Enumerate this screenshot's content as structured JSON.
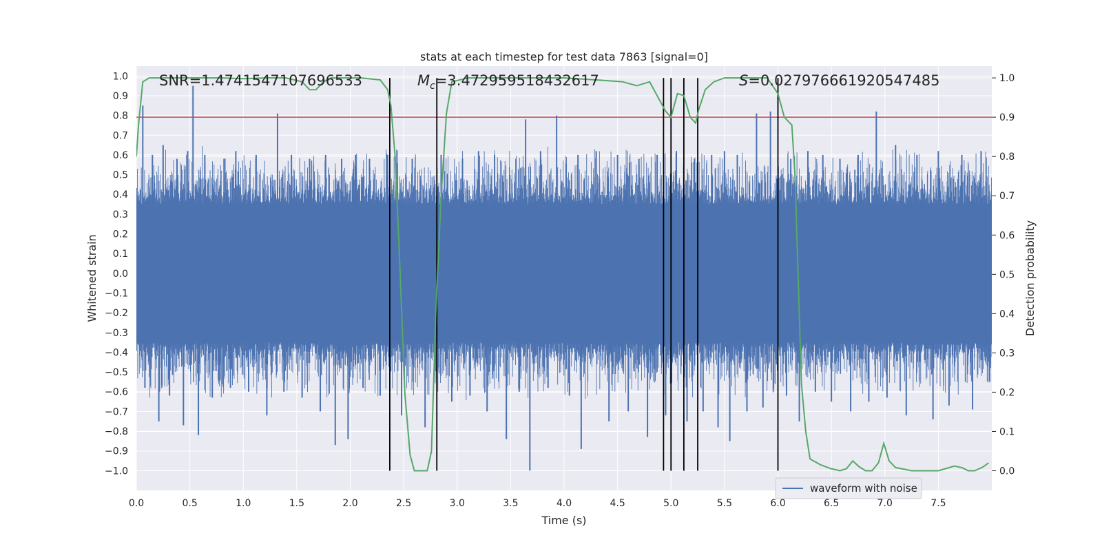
{
  "chart_data": {
    "type": "line",
    "title": "stats at each timestep for test data 7863 [signal=0]",
    "xlabel": "Time (s)",
    "ylabel": "Whitened strain",
    "y2label": "Detection probability",
    "xlim": [
      0,
      8.0
    ],
    "ylim": [
      -1.1,
      1.05
    ],
    "y2lim": [
      -0.05,
      1.03
    ],
    "xticks": [
      0.0,
      0.5,
      1.0,
      1.5,
      2.0,
      2.5,
      3.0,
      3.5,
      4.0,
      4.5,
      5.0,
      5.5,
      6.0,
      6.5,
      7.0,
      7.5
    ],
    "xtick_labels": [
      "0.0",
      "0.5",
      "1.0",
      "1.5",
      "2.0",
      "2.5",
      "3.0",
      "3.5",
      "4.0",
      "4.5",
      "5.0",
      "5.5",
      "6.0",
      "6.5",
      "7.0",
      "7.5"
    ],
    "yticks": [
      1.0,
      0.9,
      0.8,
      0.7,
      0.6,
      0.5,
      0.4,
      0.3,
      0.2,
      0.1,
      0.0,
      -0.1,
      -0.2,
      -0.3,
      -0.4,
      -0.5,
      -0.6,
      -0.7,
      -0.8,
      -0.9,
      -1.0
    ],
    "ytick_labels": [
      "1.0",
      "0.9",
      "0.8",
      "0.7",
      "0.6",
      "0.5",
      "0.4",
      "0.3",
      "0.2",
      "0.1",
      "0.0",
      "−0.1",
      "−0.2",
      "−0.3",
      "−0.4",
      "−0.5",
      "−0.6",
      "−0.7",
      "−0.8",
      "−0.9",
      "−1.0"
    ],
    "y2ticks": [
      1.0,
      0.9,
      0.8,
      0.7,
      0.6,
      0.5,
      0.4,
      0.3,
      0.2,
      0.1,
      0.0
    ],
    "y2tick_labels": [
      "1.0",
      "0.9",
      "0.8",
      "0.7",
      "0.6",
      "0.5",
      "0.4",
      "0.3",
      "0.2",
      "0.1",
      "0.0"
    ],
    "annotations": {
      "snr": "SNR=1.4741547107696533",
      "mc_symbol": "M",
      "mc_sub": "c",
      "mc_value": "=3.472959518432617",
      "s_symbol": "S",
      "s_value": "=0.027976661920547485"
    },
    "threshold": 0.9,
    "threshold_color": "#c44e52",
    "vlines": [
      2.37,
      2.81,
      4.93,
      5.0,
      5.12,
      5.25,
      6.0
    ],
    "waveform": {
      "name": "waveform with noise",
      "color": "#4c72b0",
      "core_range": [
        -0.35,
        0.35
      ],
      "spikes": [
        [
          0.06,
          0.85
        ],
        [
          0.08,
          -0.58
        ],
        [
          0.15,
          0.6
        ],
        [
          0.21,
          -0.75
        ],
        [
          0.25,
          0.65
        ],
        [
          0.31,
          -0.62
        ],
        [
          0.38,
          0.58
        ],
        [
          0.44,
          -0.77
        ],
        [
          0.48,
          0.62
        ],
        [
          0.53,
          0.95
        ],
        [
          0.58,
          -0.82
        ],
        [
          0.64,
          0.6
        ],
        [
          0.71,
          -0.63
        ],
        [
          0.82,
          0.58
        ],
        [
          0.88,
          -0.58
        ],
        [
          0.93,
          0.62
        ],
        [
          1.05,
          -0.6
        ],
        [
          1.12,
          0.6
        ],
        [
          1.22,
          -0.72
        ],
        [
          1.32,
          0.81
        ],
        [
          1.38,
          -0.6
        ],
        [
          1.45,
          0.6
        ],
        [
          1.55,
          -0.63
        ],
        [
          1.62,
          0.58
        ],
        [
          1.72,
          -0.7
        ],
        [
          1.77,
          0.6
        ],
        [
          1.86,
          -0.87
        ],
        [
          1.92,
          0.58
        ],
        [
          1.98,
          -0.84
        ],
        [
          2.05,
          0.6
        ],
        [
          2.12,
          -0.58
        ],
        [
          2.18,
          0.58
        ],
        [
          2.28,
          -0.62
        ],
        [
          2.35,
          0.6
        ],
        [
          2.48,
          -0.72
        ],
        [
          2.58,
          0.58
        ],
        [
          2.7,
          -0.78
        ],
        [
          2.85,
          0.6
        ],
        [
          2.95,
          -0.65
        ],
        [
          3.05,
          0.58
        ],
        [
          3.12,
          -0.62
        ],
        [
          3.2,
          0.62
        ],
        [
          3.28,
          -0.7
        ],
        [
          3.35,
          0.6
        ],
        [
          3.46,
          -0.84
        ],
        [
          3.55,
          0.58
        ],
        [
          3.58,
          -0.6
        ],
        [
          3.64,
          0.78
        ],
        [
          3.68,
          -1.0
        ],
        [
          3.78,
          0.62
        ],
        [
          3.85,
          -0.58
        ],
        [
          3.93,
          0.8
        ],
        [
          4.05,
          -0.62
        ],
        [
          4.13,
          0.6
        ],
        [
          4.16,
          -0.89
        ],
        [
          4.3,
          0.62
        ],
        [
          4.42,
          -0.75
        ],
        [
          4.5,
          0.6
        ],
        [
          4.6,
          -0.7
        ],
        [
          4.7,
          0.58
        ],
        [
          4.78,
          -0.83
        ],
        [
          4.87,
          0.6
        ],
        [
          4.95,
          -0.72
        ],
        [
          5.05,
          0.62
        ],
        [
          5.15,
          -0.75
        ],
        [
          5.22,
          0.58
        ],
        [
          5.3,
          -0.7
        ],
        [
          5.38,
          0.6
        ],
        [
          5.44,
          -0.78
        ],
        [
          5.5,
          0.62
        ],
        [
          5.55,
          -0.85
        ],
        [
          5.62,
          0.6
        ],
        [
          5.71,
          -0.7
        ],
        [
          5.8,
          0.81
        ],
        [
          5.86,
          -0.68
        ],
        [
          5.93,
          0.82
        ],
        [
          6.08,
          -0.62
        ],
        [
          6.12,
          0.58
        ],
        [
          6.2,
          -0.75
        ],
        [
          6.28,
          0.62
        ],
        [
          6.35,
          -0.6
        ],
        [
          6.42,
          0.6
        ],
        [
          6.5,
          -0.65
        ],
        [
          6.58,
          0.58
        ],
        [
          6.68,
          -0.7
        ],
        [
          6.75,
          0.6
        ],
        [
          6.85,
          -0.65
        ],
        [
          6.92,
          0.82
        ],
        [
          7.02,
          -0.63
        ],
        [
          7.1,
          0.65
        ],
        [
          7.2,
          -0.72
        ],
        [
          7.3,
          0.6
        ],
        [
          7.45,
          -0.74
        ],
        [
          7.5,
          0.62
        ],
        [
          7.6,
          -0.67
        ],
        [
          7.72,
          0.6
        ],
        [
          7.82,
          -0.69
        ],
        [
          7.9,
          0.62
        ],
        [
          7.98,
          -0.55
        ]
      ]
    },
    "probability": {
      "name": "detection probability",
      "color": "#55a868",
      "x": [
        0.0,
        0.02,
        0.06,
        0.12,
        0.2,
        0.4,
        0.6,
        0.8,
        1.0,
        1.2,
        1.4,
        1.55,
        1.62,
        1.68,
        1.75,
        1.82,
        1.9,
        2.1,
        2.28,
        2.35,
        2.38,
        2.42,
        2.46,
        2.51,
        2.56,
        2.6,
        2.66,
        2.72,
        2.76,
        2.8,
        2.85,
        2.9,
        2.95,
        3.1,
        3.5,
        4.0,
        4.3,
        4.55,
        4.68,
        4.8,
        4.9,
        4.95,
        5.0,
        5.06,
        5.12,
        5.18,
        5.23,
        5.26,
        5.32,
        5.4,
        5.5,
        5.7,
        5.9,
        6.0,
        6.06,
        6.13,
        6.16,
        6.22,
        6.26,
        6.3,
        6.4,
        6.5,
        6.58,
        6.64,
        6.7,
        6.76,
        6.82,
        6.88,
        6.94,
        6.99,
        7.04,
        7.1,
        7.16,
        7.25,
        7.35,
        7.5,
        7.65,
        7.72,
        7.78,
        7.84,
        7.92,
        7.97
      ],
      "y": [
        0.8,
        0.88,
        0.99,
        1.0,
        1.0,
        1.0,
        1.0,
        1.0,
        0.998,
        1.0,
        1.0,
        0.99,
        0.97,
        0.97,
        0.99,
        1.0,
        1.0,
        1.0,
        0.995,
        0.97,
        0.93,
        0.8,
        0.55,
        0.2,
        0.04,
        0.0,
        0.0,
        0.0,
        0.05,
        0.4,
        0.7,
        0.91,
        0.99,
        1.0,
        1.0,
        1.0,
        0.995,
        0.99,
        0.98,
        0.99,
        0.94,
        0.915,
        0.9,
        0.96,
        0.955,
        0.9,
        0.885,
        0.92,
        0.97,
        0.99,
        1.0,
        1.0,
        1.0,
        0.96,
        0.9,
        0.88,
        0.75,
        0.22,
        0.1,
        0.03,
        0.015,
        0.005,
        0.0,
        0.005,
        0.025,
        0.01,
        0.0,
        0.0,
        0.02,
        0.07,
        0.025,
        0.008,
        0.005,
        0.0,
        0.0,
        0.0,
        0.012,
        0.008,
        0.0,
        0.0,
        0.01,
        0.02
      ]
    },
    "legend": {
      "placement": "lower-right",
      "label": "waveform with noise"
    },
    "grid": true,
    "background_color": "#eaeaf2"
  }
}
